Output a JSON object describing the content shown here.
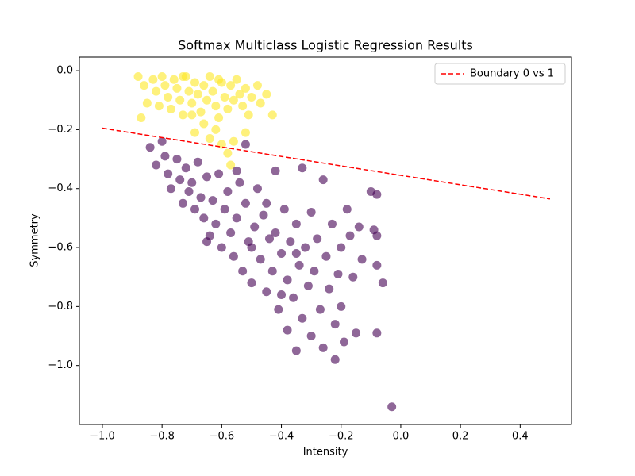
{
  "chart_data": {
    "type": "scatter",
    "title": "Softmax Multiclass Logistic Regression Results",
    "x_label": "Intensity",
    "y_label": "Symmetry",
    "xlim": [
      -1.077,
      0.572
    ],
    "ylim": [
      -1.2,
      0.046
    ],
    "xticks": [
      {
        "value": -1.0,
        "label": "−1.0"
      },
      {
        "value": -0.8,
        "label": "−0.8"
      },
      {
        "value": -0.6,
        "label": "−0.6"
      },
      {
        "value": -0.4,
        "label": "−0.4"
      },
      {
        "value": -0.2,
        "label": "−0.2"
      },
      {
        "value": 0,
        "label": "0.0"
      },
      0.2,
      0.4
    ],
    "yticks": [
      {
        "value": 0,
        "label": "0.0"
      },
      {
        "value": -0.2,
        "label": "−0.2"
      },
      {
        "value": -0.4,
        "label": "−0.4"
      },
      {
        "value": -0.6,
        "label": "−0.6"
      },
      {
        "value": -0.8,
        "label": "−0.8"
      },
      {
        "value": -1.0,
        "label": "−1.0"
      }
    ],
    "legend": "upper right",
    "series": [
      {
        "color": "#fde725",
        "opacity": 0.6,
        "x": [
          -0.88,
          -0.86,
          -0.85,
          -0.87,
          -0.83,
          -0.82,
          -0.81,
          -0.8,
          -0.79,
          -0.78,
          -0.77,
          -0.76,
          -0.75,
          -0.74,
          -0.73,
          -0.72,
          -0.71,
          -0.7,
          -0.69,
          -0.68,
          -0.67,
          -0.66,
          -0.65,
          -0.64,
          -0.63,
          -0.62,
          -0.61,
          -0.6,
          -0.59,
          -0.58,
          -0.57,
          -0.56,
          -0.55,
          -0.54,
          -0.53,
          -0.52,
          -0.51,
          -0.5,
          -0.48,
          -0.47,
          -0.45,
          -0.43,
          -0.62,
          -0.64,
          -0.6,
          -0.56,
          -0.69,
          -0.57,
          -0.66,
          -0.52,
          -0.58,
          -0.73,
          -0.7,
          -0.61
        ],
        "y": [
          -0.02,
          -0.05,
          -0.11,
          -0.16,
          -0.03,
          -0.07,
          -0.12,
          -0.02,
          -0.05,
          -0.09,
          -0.13,
          -0.03,
          -0.06,
          -0.1,
          -0.15,
          -0.02,
          -0.07,
          -0.11,
          -0.04,
          -0.08,
          -0.14,
          -0.05,
          -0.1,
          -0.02,
          -0.07,
          -0.12,
          -0.16,
          -0.04,
          -0.09,
          -0.13,
          -0.05,
          -0.1,
          -0.03,
          -0.08,
          -0.12,
          -0.06,
          -0.15,
          -0.09,
          -0.05,
          -0.11,
          -0.08,
          -0.15,
          -0.2,
          -0.23,
          -0.25,
          -0.24,
          -0.21,
          -0.32,
          -0.18,
          -0.21,
          -0.28,
          -0.02,
          -0.15,
          -0.03
        ]
      },
      {
        "color": "#440154",
        "opacity": 0.6,
        "x": [
          -0.84,
          -0.82,
          -0.8,
          -0.79,
          -0.77,
          -0.78,
          -0.75,
          -0.74,
          -0.73,
          -0.72,
          -0.71,
          -0.7,
          -0.69,
          -0.68,
          -0.67,
          -0.66,
          -0.65,
          -0.64,
          -0.63,
          -0.62,
          -0.61,
          -0.6,
          -0.59,
          -0.58,
          -0.57,
          -0.56,
          -0.55,
          -0.54,
          -0.53,
          -0.52,
          -0.52,
          -0.51,
          -0.5,
          -0.49,
          -0.48,
          -0.47,
          -0.46,
          -0.45,
          -0.44,
          -0.43,
          -0.42,
          -0.42,
          -0.41,
          -0.4,
          -0.39,
          -0.38,
          -0.38,
          -0.37,
          -0.36,
          -0.35,
          -0.35,
          -0.34,
          -0.33,
          -0.33,
          -0.32,
          -0.31,
          -0.3,
          -0.3,
          -0.29,
          -0.28,
          -0.27,
          -0.26,
          -0.26,
          -0.25,
          -0.24,
          -0.23,
          -0.22,
          -0.22,
          -0.21,
          -0.2,
          -0.2,
          -0.19,
          -0.18,
          -0.17,
          -0.16,
          -0.15,
          -0.14,
          -0.13,
          -0.1,
          -0.09,
          -0.08,
          -0.08,
          -0.08,
          -0.08,
          -0.06,
          -0.03,
          -0.55,
          -0.65,
          -0.45,
          -0.4,
          -0.5,
          -0.35
        ],
        "y": [
          -0.26,
          -0.32,
          -0.24,
          -0.29,
          -0.4,
          -0.35,
          -0.3,
          -0.37,
          -0.45,
          -0.33,
          -0.41,
          -0.38,
          -0.47,
          -0.31,
          -0.43,
          -0.5,
          -0.36,
          -0.56,
          -0.44,
          -0.52,
          -0.35,
          -0.6,
          -0.47,
          -0.41,
          -0.55,
          -0.63,
          -0.5,
          -0.38,
          -0.68,
          -0.45,
          -0.25,
          -0.58,
          -0.72,
          -0.53,
          -0.4,
          -0.64,
          -0.49,
          -0.75,
          -0.57,
          -0.68,
          -0.55,
          -0.34,
          -0.81,
          -0.62,
          -0.47,
          -0.71,
          -0.88,
          -0.58,
          -0.77,
          -0.95,
          -0.52,
          -0.66,
          -0.33,
          -0.84,
          -0.6,
          -0.73,
          -0.48,
          -0.9,
          -0.68,
          -0.57,
          -0.81,
          -0.37,
          -0.94,
          -0.63,
          -0.74,
          -0.52,
          -0.98,
          -0.86,
          -0.69,
          -0.8,
          -0.6,
          -0.92,
          -0.47,
          -0.56,
          -0.7,
          -0.89,
          -0.53,
          -0.64,
          -0.41,
          -0.54,
          -0.42,
          -0.56,
          -0.66,
          -0.89,
          -0.72,
          -1.14,
          -0.34,
          -0.58,
          -0.45,
          -0.76,
          -0.6,
          -0.62
        ]
      }
    ],
    "lines": [
      {
        "name": "Boundary 0 vs 1",
        "color": "#ff0000",
        "dashed": true,
        "x": [
          -1.0,
          0.5
        ],
        "y": [
          -0.195,
          -0.435
        ]
      }
    ]
  }
}
